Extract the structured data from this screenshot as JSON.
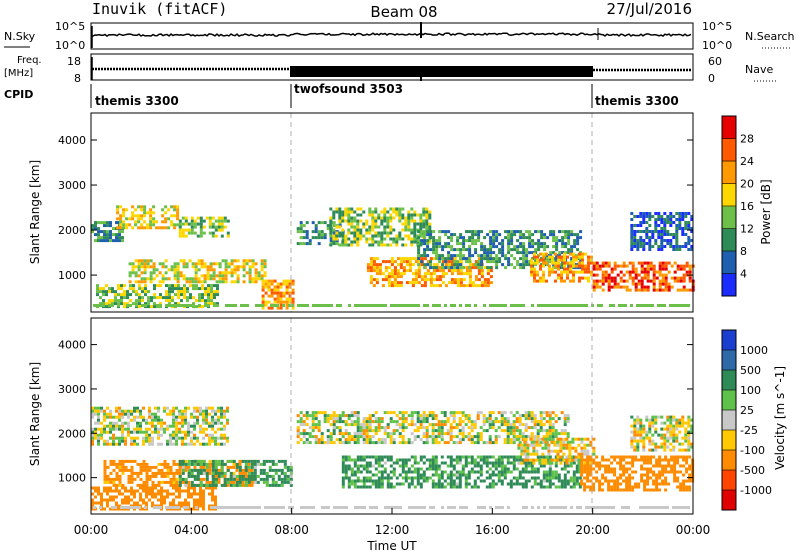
{
  "header": {
    "station": "Inuvik (fitACF)",
    "beam": "Beam 08",
    "date": "27/Jul/2016"
  },
  "top_panels": {
    "nsky_label": "N.Sky",
    "nsky_ticks": [
      "10^5",
      "10^0"
    ],
    "nsearch_label": "N.Search",
    "nsearch_ticks": [
      "10^5",
      "10^0"
    ],
    "freq_label": "Freq.",
    "freq_unit": "[MHz]",
    "freq_ticks": [
      "18",
      "8"
    ],
    "nave_label": "Nave",
    "nave_ticks": [
      "60",
      "0"
    ],
    "cpid_label": "CPID",
    "cpid_segments": [
      {
        "name": "themis 3300",
        "start_hour": 0,
        "end_hour": 8
      },
      {
        "name": "twofsound 3503",
        "start_hour": 8,
        "end_hour": 20
      },
      {
        "name": "themis 3300",
        "start_hour": 20,
        "end_hour": 24
      }
    ]
  },
  "chart_data": [
    {
      "type": "heatmap",
      "title": "",
      "xlabel": "Time UT",
      "ylabel": "Slant Range [km]",
      "xlim": [
        0,
        24
      ],
      "ylim": [
        180,
        4600
      ],
      "yticks": [
        "1000",
        "2000",
        "3000",
        "4000"
      ],
      "colorbar": {
        "label": "Power [dB]",
        "ticks": [
          "4",
          "8",
          "12",
          "16",
          "20",
          "24",
          "28"
        ],
        "colors": [
          "#1a2cff",
          "#1f5fb0",
          "#2e8b57",
          "#6cc04a",
          "#ffd700",
          "#ff9900",
          "#ff5a00",
          "#e60000"
        ]
      },
      "echo_regions": [
        {
          "t0": 0.0,
          "t1": 1.2,
          "r0": 1750,
          "r1": 2200,
          "level": 12
        },
        {
          "t0": 1.0,
          "t1": 3.5,
          "r0": 2050,
          "r1": 2550,
          "level": 20
        },
        {
          "t0": 3.5,
          "t1": 5.5,
          "r0": 1850,
          "r1": 2300,
          "level": 16
        },
        {
          "t0": 1.5,
          "t1": 7.0,
          "r0": 850,
          "r1": 1350,
          "level": 20
        },
        {
          "t0": 0.2,
          "t1": 5.0,
          "r0": 300,
          "r1": 800,
          "level": 16
        },
        {
          "t0": 6.8,
          "t1": 8.1,
          "r0": 250,
          "r1": 900,
          "level": 24
        },
        {
          "t0": 8.2,
          "t1": 10.0,
          "r0": 1700,
          "r1": 2200,
          "level": 12
        },
        {
          "t0": 9.5,
          "t1": 13.5,
          "r0": 1700,
          "r1": 2500,
          "level": 16
        },
        {
          "t0": 11.0,
          "t1": 16.0,
          "r0": 800,
          "r1": 1400,
          "level": 24
        },
        {
          "t0": 13.0,
          "t1": 19.5,
          "r0": 1200,
          "r1": 2000,
          "level": 12
        },
        {
          "t0": 17.5,
          "t1": 20.0,
          "r0": 900,
          "r1": 1500,
          "level": 24
        },
        {
          "t0": 20.0,
          "t1": 24.0,
          "r0": 700,
          "r1": 1300,
          "level": 28
        },
        {
          "t0": 21.5,
          "t1": 24.0,
          "r0": 1600,
          "r1": 2400,
          "level": 8
        }
      ]
    },
    {
      "type": "heatmap",
      "title": "",
      "xlabel": "Time UT",
      "ylabel": "Slant Range [km]",
      "xlim": [
        0,
        24
      ],
      "ylim": [
        180,
        4600
      ],
      "yticks": [
        "1000",
        "2000",
        "3000",
        "4000"
      ],
      "xticks": [
        "00:00",
        "04:00",
        "08:00",
        "12:00",
        "16:00",
        "20:00",
        "00:00"
      ],
      "colorbar": {
        "label": "Velocity [m s^-1]",
        "ticks": [
          "1000",
          "500",
          "100",
          "25",
          "-25",
          "-100",
          "-500",
          "-1000"
        ],
        "colors": [
          "#1a3fd0",
          "#2e6aa8",
          "#2e8b57",
          "#5ec24a",
          "#c8c8c8",
          "#ffc800",
          "#ff8c00",
          "#ff4500",
          "#e00000"
        ]
      },
      "echo_regions": [
        {
          "t0": 0.0,
          "t1": 5.5,
          "r0": 1750,
          "r1": 2600,
          "level": 0
        },
        {
          "t0": 0.5,
          "t1": 6.5,
          "r0": 850,
          "r1": 1400,
          "level": -200
        },
        {
          "t0": 0.0,
          "t1": 5.0,
          "r0": 300,
          "r1": 800,
          "level": -300
        },
        {
          "t0": 3.5,
          "t1": 8.0,
          "r0": 800,
          "r1": 1400,
          "level": 150
        },
        {
          "t0": 8.2,
          "t1": 19.0,
          "r0": 1800,
          "r1": 2500,
          "level": 0
        },
        {
          "t0": 10.0,
          "t1": 19.5,
          "r0": 800,
          "r1": 1500,
          "level": 150
        },
        {
          "t0": 17.0,
          "t1": 20.0,
          "r0": 1300,
          "r1": 1900,
          "level": -50
        },
        {
          "t0": 19.5,
          "t1": 24.0,
          "r0": 700,
          "r1": 1500,
          "level": -300
        },
        {
          "t0": 21.5,
          "t1": 24.0,
          "r0": 1600,
          "r1": 2400,
          "level": 0
        }
      ]
    }
  ]
}
